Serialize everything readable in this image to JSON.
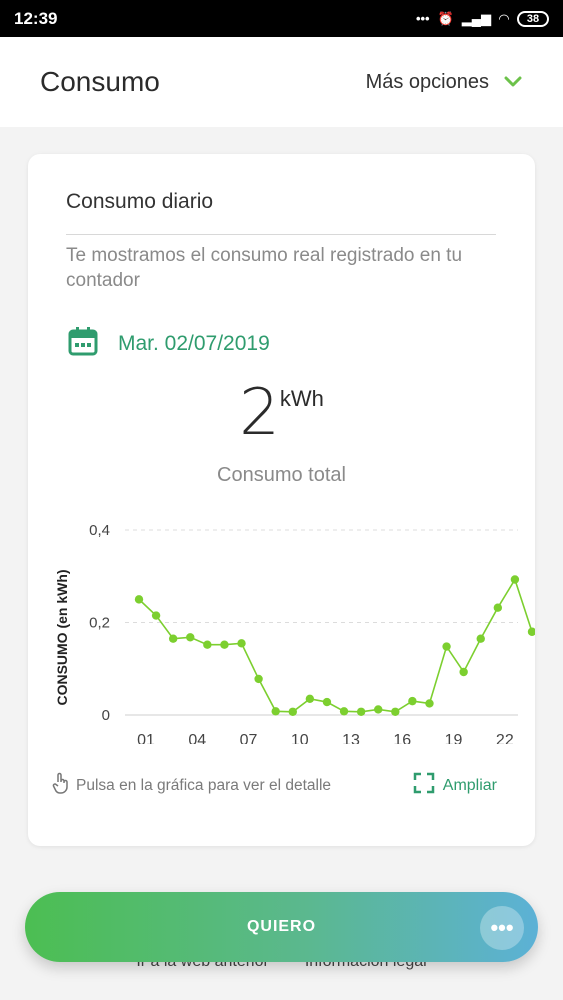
{
  "status_bar": {
    "time": "12:39",
    "battery": "38"
  },
  "header": {
    "title": "Consumo",
    "more_options": "Más opciones"
  },
  "card": {
    "title": "Consumo diario",
    "description": "Te mostramos el consumo real registrado en tu contador",
    "date": "Mar. 02/07/2019",
    "total_value": "2",
    "total_unit": "kWh",
    "total_label": "Consumo total",
    "hint": "Pulsa en la gráfica para ver el detalle",
    "expand_label": "Ampliar"
  },
  "chart_data": {
    "type": "line",
    "ylabel": "CONSUMO (en kWh)",
    "ylim": [
      0,
      0.4
    ],
    "y_ticks": [
      "0",
      "0,2",
      "0,4"
    ],
    "x_ticks": [
      "01",
      "04",
      "07",
      "10",
      "13",
      "16",
      "19",
      "22"
    ],
    "x": [
      1,
      2,
      3,
      4,
      5,
      6,
      7,
      8,
      9,
      10,
      11,
      12,
      13,
      14,
      15,
      16,
      17,
      18,
      19,
      20,
      21,
      22,
      23,
      24
    ],
    "values": [
      0.25,
      0.215,
      0.165,
      0.168,
      0.152,
      0.152,
      0.155,
      0.078,
      0.008,
      0.007,
      0.035,
      0.028,
      0.008,
      0.007,
      0.012,
      0.007,
      0.03,
      0.025,
      0.148,
      0.093,
      0.165,
      0.232,
      0.293,
      0.18
    ],
    "line_color": "#7ccf2f",
    "grid": "dashed horizontal"
  },
  "cta": {
    "label": "QUIERO"
  },
  "footer_links": [
    "Ir a la web anterior",
    "Información legal"
  ],
  "icons": [
    "calendar-icon",
    "chevron-down-icon",
    "hand-pointer-icon",
    "expand-icon",
    "more-dots-icon"
  ],
  "colors": {
    "accent": "#2f9c6e",
    "chart_line": "#7ccf2f",
    "chevron": "#6cc24a"
  }
}
